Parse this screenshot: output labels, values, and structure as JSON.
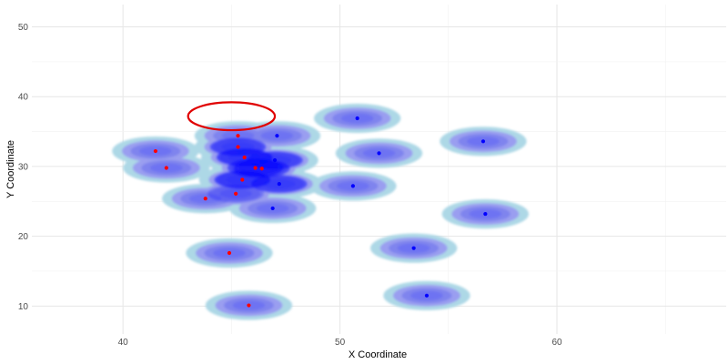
{
  "chart_data": {
    "type": "scatter",
    "title": "",
    "xlabel": "X Coordinate",
    "ylabel": "Y Coordinate",
    "xlim": [
      35.8,
      67.8
    ],
    "ylim": [
      6.0,
      53.2
    ],
    "x_ticks": [
      40,
      50,
      60
    ],
    "y_ticks": [
      10,
      20,
      30,
      40,
      50
    ],
    "grid": true,
    "legend": "none",
    "density_colors": {
      "low": "#add8e6",
      "high": "#0000ff"
    },
    "series": [
      {
        "color": "#ff0000",
        "points": [
          {
            "x": 41.5,
            "y": 32.2
          },
          {
            "x": 42.0,
            "y": 29.8
          },
          {
            "x": 45.3,
            "y": 34.4
          },
          {
            "x": 45.3,
            "y": 32.8
          },
          {
            "x": 45.6,
            "y": 31.3
          },
          {
            "x": 46.1,
            "y": 29.8
          },
          {
            "x": 46.4,
            "y": 29.7
          },
          {
            "x": 45.5,
            "y": 28.1
          },
          {
            "x": 43.8,
            "y": 25.4
          },
          {
            "x": 45.2,
            "y": 26.1
          },
          {
            "x": 44.9,
            "y": 17.6
          },
          {
            "x": 45.8,
            "y": 10.1
          }
        ]
      },
      {
        "color": "#0000ff",
        "points": [
          {
            "x": 47.1,
            "y": 34.4
          },
          {
            "x": 47.0,
            "y": 30.9
          },
          {
            "x": 47.2,
            "y": 27.5
          },
          {
            "x": 46.9,
            "y": 24.0
          },
          {
            "x": 50.8,
            "y": 36.9
          },
          {
            "x": 51.8,
            "y": 31.9
          },
          {
            "x": 50.6,
            "y": 27.2
          },
          {
            "x": 56.6,
            "y": 33.6
          },
          {
            "x": 53.4,
            "y": 18.3
          },
          {
            "x": 56.7,
            "y": 23.2
          },
          {
            "x": 54.0,
            "y": 11.5
          }
        ]
      }
    ],
    "annotations": [
      {
        "type": "ellipse",
        "cx": 45.0,
        "cy": 37.2,
        "rx": 2.0,
        "ry": 2.0,
        "color": "#e00000"
      }
    ]
  }
}
